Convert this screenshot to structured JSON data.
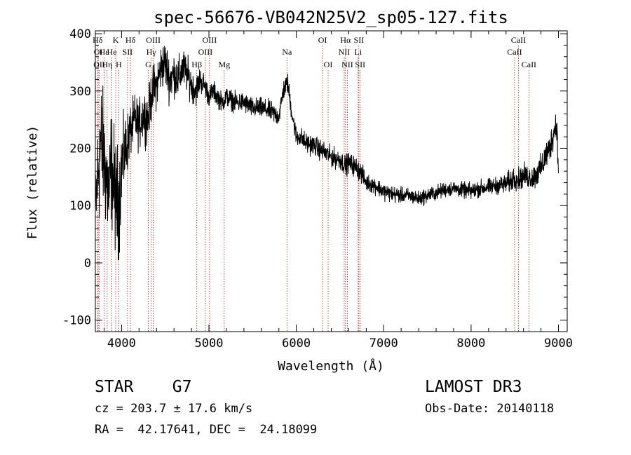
{
  "chart_data": {
    "type": "line",
    "title": "spec-56676-VB042N25V2_sp05-127.fits",
    "xlabel": "Wavelength (Å)",
    "ylabel": "Flux (relative)",
    "xlim": [
      3700,
      9100
    ],
    "ylim": [
      -120,
      405
    ],
    "xticks": [
      4000,
      5000,
      6000,
      7000,
      8000,
      9000
    ],
    "yticks": [
      -100,
      0,
      100,
      200,
      300,
      400
    ],
    "grid": false,
    "line_color": "#000000",
    "marker_color": "#b22222",
    "series": [
      {
        "x": [
          3700,
          3720,
          3740,
          3760,
          3780,
          3800,
          3820,
          3840,
          3860,
          3880,
          3900,
          3920,
          3940,
          3960,
          3980,
          4000,
          4050,
          4100,
          4150,
          4200,
          4250,
          4300,
          4350,
          4400,
          4450,
          4500,
          4550,
          4600,
          4650,
          4700,
          4750,
          4800,
          4850,
          4900,
          4950,
          5000,
          5050,
          5100,
          5150,
          5200,
          5300,
          5400,
          5500,
          5600,
          5700,
          5800,
          5850,
          5900,
          5950,
          6000,
          6050,
          6100,
          6200,
          6300,
          6400,
          6500,
          6560,
          6600,
          6650,
          6700,
          6750,
          6800,
          6900,
          7000,
          7100,
          7200,
          7300,
          7400,
          7500,
          7600,
          7700,
          7800,
          7900,
          8000,
          8100,
          8200,
          8300,
          8400,
          8450,
          8500,
          8550,
          8600,
          8650,
          8700,
          8750,
          8800,
          8850,
          8900,
          8950,
          8980,
          9000
        ],
        "y": [
          80,
          140,
          170,
          210,
          200,
          180,
          160,
          130,
          120,
          170,
          150,
          130,
          110,
          100,
          120,
          170,
          200,
          230,
          250,
          240,
          260,
          250,
          300,
          310,
          340,
          350,
          320,
          330,
          320,
          340,
          330,
          310,
          300,
          320,
          310,
          290,
          300,
          290,
          280,
          290,
          280,
          280,
          270,
          270,
          265,
          255,
          300,
          315,
          260,
          220,
          220,
          210,
          205,
          195,
          185,
          180,
          170,
          175,
          170,
          165,
          155,
          140,
          135,
          125,
          120,
          118,
          117,
          112,
          118,
          122,
          128,
          130,
          127,
          125,
          130,
          132,
          135,
          138,
          142,
          150,
          145,
          152,
          150,
          148,
          155,
          165,
          185,
          200,
          230,
          245,
          150
        ],
        "noise": [
          55,
          60,
          80,
          80,
          75,
          70,
          70,
          70,
          70,
          70,
          70,
          70,
          70,
          70,
          60,
          50,
          40,
          30,
          30,
          30,
          30,
          30,
          30,
          28,
          28,
          28,
          28,
          26,
          26,
          24,
          22,
          20,
          18,
          16,
          14,
          12,
          12,
          12,
          12,
          12,
          12,
          12,
          12,
          12,
          12,
          12,
          12,
          12,
          12,
          12,
          12,
          12,
          12,
          12,
          12,
          12,
          12,
          12,
          12,
          12,
          12,
          10,
          10,
          10,
          10,
          9,
          9,
          9,
          9,
          9,
          9,
          9,
          9,
          10,
          10,
          10,
          10,
          12,
          14,
          14,
          14,
          14,
          14,
          14,
          16,
          16,
          18,
          18,
          18,
          18,
          18
        ]
      }
    ],
    "lines": [
      {
        "label": "Hδ",
        "x": 3726,
        "row": 0
      },
      {
        "label": "OI",
        "x": 3733,
        "row": 1
      },
      {
        "label": "OII",
        "x": 3745,
        "row": 2
      },
      {
        "label": "Hε",
        "x": 3800,
        "row": 1
      },
      {
        "label": "K",
        "x": 3933,
        "row": 0
      },
      {
        "label": "He",
        "x": 3889,
        "row": 1
      },
      {
        "label": "Hη",
        "x": 3835,
        "row": 2
      },
      {
        "label": "H",
        "x": 3968,
        "row": 2
      },
      {
        "label": "SII",
        "x": 4068,
        "row": 1
      },
      {
        "label": "Hδ",
        "x": 4102,
        "row": 0
      },
      {
        "label": "OIII",
        "x": 4363,
        "row": 0
      },
      {
        "label": "Hγ",
        "x": 4340,
        "row": 1
      },
      {
        "label": "G",
        "x": 4305,
        "row": 2
      },
      {
        "label": "Hβ",
        "x": 4861,
        "row": 2
      },
      {
        "label": "OIII",
        "x": 5007,
        "row": 0
      },
      {
        "label": "OIII",
        "x": 4959,
        "row": 1
      },
      {
        "label": "Mg",
        "x": 5175,
        "row": 2
      },
      {
        "label": "Na",
        "x": 5893,
        "row": 1
      },
      {
        "label": "OI",
        "x": 6300,
        "row": 0
      },
      {
        "label": "OI",
        "x": 6364,
        "row": 2
      },
      {
        "label": "Hα",
        "x": 6563,
        "row": 0
      },
      {
        "label": "NII",
        "x": 6548,
        "row": 1
      },
      {
        "label": "NII",
        "x": 6584,
        "row": 2
      },
      {
        "label": "SII",
        "x": 6716,
        "row": 0
      },
      {
        "label": "Li",
        "x": 6708,
        "row": 1
      },
      {
        "label": "SII",
        "x": 6731,
        "row": 2
      },
      {
        "label": "CaII",
        "x": 8542,
        "row": 0
      },
      {
        "label": "CaII",
        "x": 8498,
        "row": 1
      },
      {
        "label": "CaII",
        "x": 8662,
        "row": 2
      }
    ]
  },
  "info": {
    "class_text": "STAR    G7",
    "survey_text": "LAMOST DR3",
    "cz_text": "cz = 203.7 ± 17.6 km/s",
    "obs_date_text": "Obs-Date: 20140118",
    "radec_text": "RA =  42.17641, DEC =  24.18099"
  }
}
